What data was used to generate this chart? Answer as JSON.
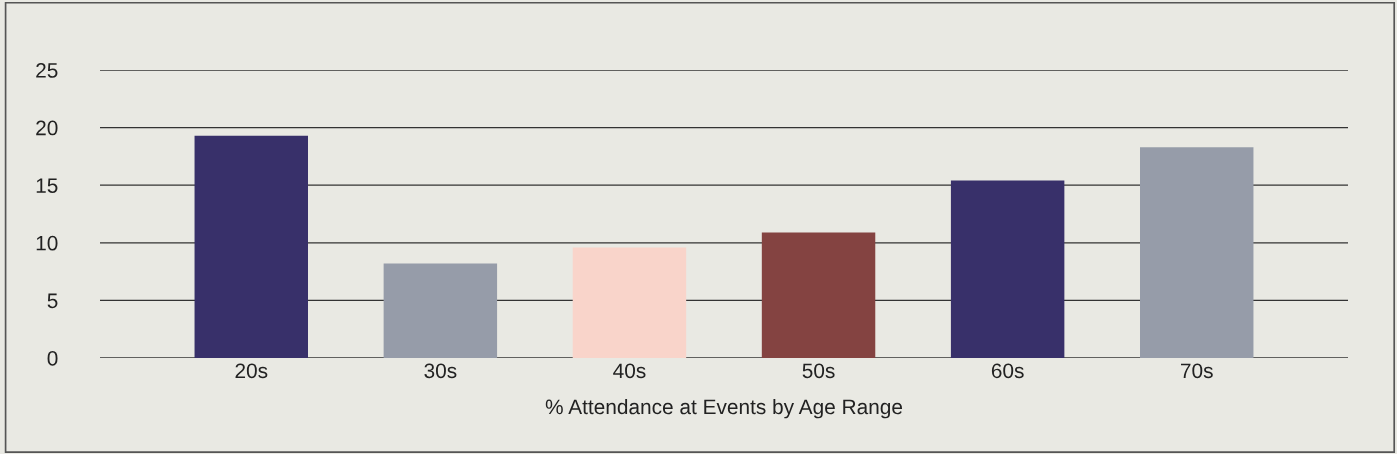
{
  "chart_data": {
    "type": "bar",
    "xlabel": "% Attendance at Events by Age Range",
    "categories": [
      "20s",
      "30s",
      "40s",
      "50s",
      "60s",
      "70s"
    ],
    "values": [
      19.3,
      8.2,
      9.6,
      10.9,
      15.4,
      18.3
    ],
    "colors": [
      "#38306a",
      "#969ca9",
      "#f9d4ca",
      "#844341",
      "#38306a",
      "#969ca9"
    ],
    "ylim": [
      0,
      25
    ],
    "yticks": [
      0,
      5,
      10,
      15,
      20,
      25
    ],
    "grid": "y"
  }
}
